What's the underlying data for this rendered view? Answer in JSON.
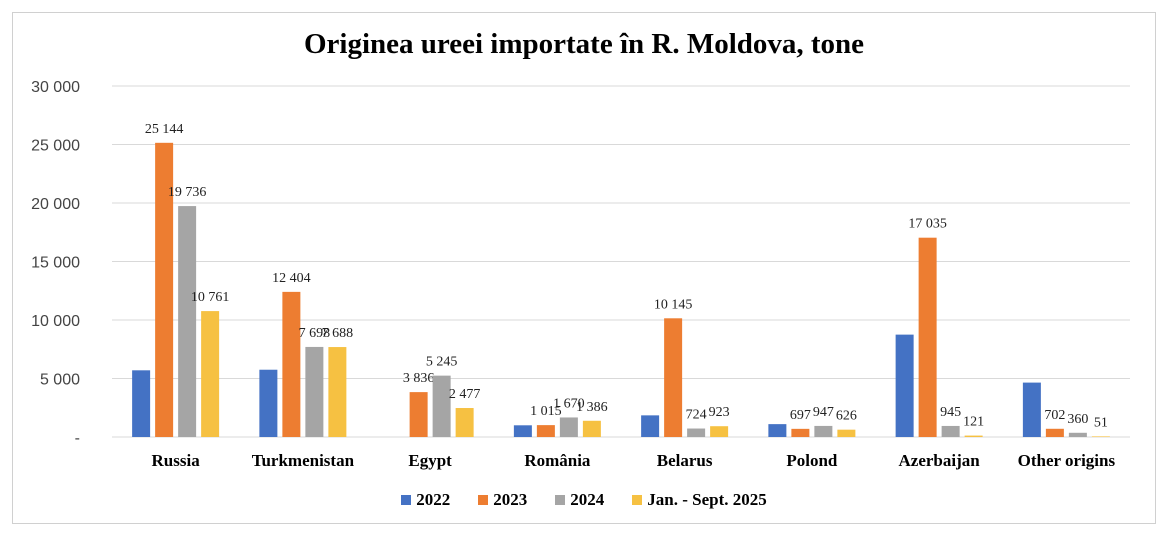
{
  "chart_data": {
    "type": "bar",
    "title": "Originea ureei importate în R. Moldova, tone",
    "categories": [
      "Russia",
      "Turkmenistan",
      "Egypt",
      "România",
      "Belarus",
      "Polond",
      "Azerbaijan",
      "Other origins"
    ],
    "series": [
      {
        "name": "2022",
        "color": "#4472C4",
        "values": [
          5700,
          5750,
          0,
          1000,
          1850,
          1100,
          8750,
          4650
        ],
        "labels": [
          "",
          "",
          "",
          "",
          "",
          "",
          "",
          ""
        ]
      },
      {
        "name": "2023",
        "color": "#ED7D31",
        "values": [
          25144,
          12404,
          3836,
          1015,
          10145,
          697,
          17035,
          702
        ],
        "labels": [
          "25 144",
          "12 404",
          "3 836",
          "1 015",
          "10 145",
          "697",
          "17 035",
          "702"
        ]
      },
      {
        "name": "2024",
        "color": "#A5A5A5",
        "values": [
          19736,
          7698,
          5245,
          1670,
          724,
          947,
          945,
          360
        ],
        "labels": [
          "19 736",
          "7 698",
          "5 245",
          "1 670",
          "724",
          "947",
          "945",
          "360"
        ]
      },
      {
        "name": "Jan. - Sept. 2025",
        "color": "#F6C142",
        "values": [
          10761,
          7688,
          2477,
          1386,
          923,
          626,
          121,
          51
        ],
        "labels": [
          "10 761",
          "7 688",
          "2 477",
          "1 386",
          "923",
          "626",
          "121",
          "51"
        ]
      }
    ],
    "ylim": [
      0,
      30000
    ],
    "yticks": [
      0,
      5000,
      10000,
      15000,
      20000,
      25000,
      30000
    ],
    "ytick_labels": [
      "-",
      "5 000",
      "10 000",
      "15 000",
      "20 000",
      "25 000",
      "30 000"
    ],
    "grid": true,
    "legend_position": "bottom"
  }
}
